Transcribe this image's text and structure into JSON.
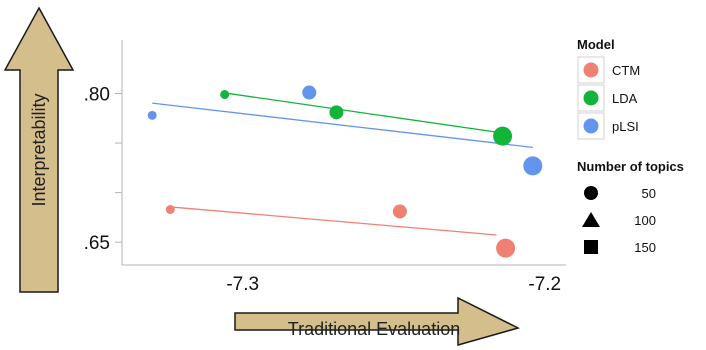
{
  "chart_data": {
    "type": "scatter",
    "xlabel": "Traditional Evaluation",
    "ylabel": "Interpretability",
    "xlim": [
      -7.335,
      -7.188
    ],
    "ylim": [
      0.627,
      0.854
    ],
    "x_ticks": [
      {
        "value": -7.3,
        "label": "-7.3"
      },
      {
        "value": -7.2,
        "label": "-7.2"
      }
    ],
    "y_ticks": [
      {
        "value": 0.8,
        "label": ".80"
      },
      {
        "value": 0.65,
        "label": ".65"
      }
    ],
    "y_gridlines": [
      0.8,
      0.75,
      0.7,
      0.65
    ],
    "legend_model": {
      "title": "Model",
      "items": [
        {
          "name": "CTM",
          "color": "#f08072"
        },
        {
          "name": "LDA",
          "color": "#12b43a"
        },
        {
          "name": "pLSI",
          "color": "#6495ed"
        }
      ]
    },
    "legend_topics": {
      "title": "Number of topics",
      "items": [
        {
          "label": "50",
          "shape": "circle"
        },
        {
          "label": "100",
          "shape": "triangle"
        },
        {
          "label": "150",
          "shape": "square"
        }
      ]
    },
    "series": [
      {
        "name": "CTM",
        "color": "#f08072",
        "points": [
          {
            "x": -7.319,
            "y": 0.683,
            "topics": 50
          },
          {
            "x": -7.243,
            "y": 0.681,
            "topics": 100
          },
          {
            "x": -7.208,
            "y": 0.644,
            "topics": 150
          }
        ],
        "fit": {
          "x1": -7.319,
          "y1": 0.6856,
          "x2": -7.211,
          "y2": 0.6573
        }
      },
      {
        "name": "LDA",
        "color": "#12b43a",
        "points": [
          {
            "x": -7.301,
            "y": 0.799,
            "topics": 50
          },
          {
            "x": -7.264,
            "y": 0.781,
            "topics": 100
          },
          {
            "x": -7.209,
            "y": 0.757,
            "topics": 150
          }
        ],
        "fit": {
          "x1": -7.301,
          "y1": 0.8006,
          "x2": -7.209,
          "y2": 0.7602
        }
      },
      {
        "name": "pLSI",
        "color": "#6495ed",
        "points": [
          {
            "x": -7.325,
            "y": 0.778,
            "topics": 50
          },
          {
            "x": -7.273,
            "y": 0.801,
            "topics": 100
          },
          {
            "x": -7.199,
            "y": 0.727,
            "topics": 150
          }
        ],
        "fit": {
          "x1": -7.325,
          "y1": 0.7903,
          "x2": -7.199,
          "y2": 0.7457
        }
      }
    ]
  }
}
